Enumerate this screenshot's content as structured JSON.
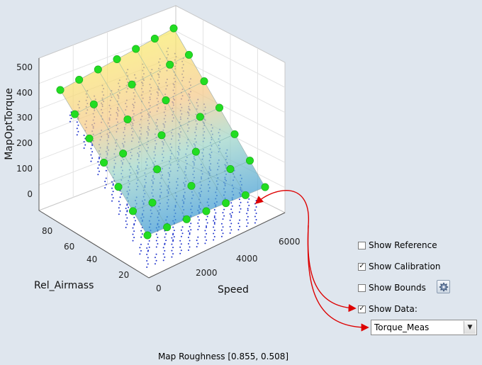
{
  "plot": {
    "zlabel": "MapOptTorque",
    "xlabel": "Speed",
    "ylabel": "Rel_Airmass",
    "z_ticks": [
      "0",
      "100",
      "200",
      "300",
      "400",
      "500"
    ],
    "x_ticks": [
      "0",
      "2000",
      "4000",
      "6000"
    ],
    "y_ticks": [
      "20",
      "40",
      "60",
      "80"
    ],
    "colors": {
      "calibration_points": "#22dd22",
      "data_points": "#1f33cc",
      "arrows": "#dd0000"
    }
  },
  "controls": {
    "show_reference": {
      "label": "Show Reference",
      "checked": false
    },
    "show_calibration": {
      "label": "Show Calibration",
      "checked": true
    },
    "show_bounds": {
      "label": "Show Bounds",
      "checked": false,
      "settings_icon": "gear-icon"
    },
    "show_data": {
      "label": "Show Data:",
      "checked": true
    },
    "data_select": {
      "value": "Torque_Meas",
      "arrow_icon": "chevron-down-icon"
    }
  },
  "status": {
    "text": "Map Roughness [0.855, 0.508]"
  }
}
